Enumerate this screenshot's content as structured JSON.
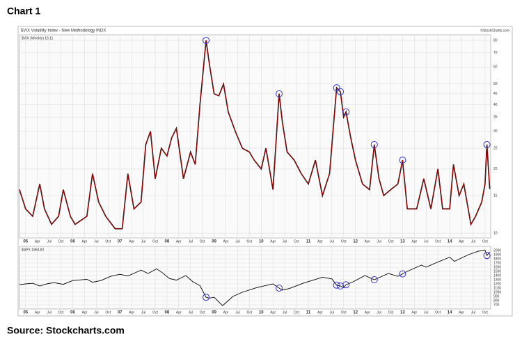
{
  "header": {
    "title": "Chart 1"
  },
  "footer": {
    "source": "Source: Stockcharts.com"
  },
  "chart_data": [
    {
      "type": "line",
      "title": "$VIX Volatility Index - New Methodology INDX",
      "credit": "©StockCharts.com",
      "legend_label": "$VIX (Weekly) 16.11",
      "color": "#cc0000",
      "highlight_color": "#3333cc",
      "log_scale": true,
      "grid": true,
      "xlim": [
        2004.87,
        2014.87
      ],
      "xticks": [
        {
          "value": 2005,
          "label": "05"
        },
        {
          "value": 2005.25,
          "label": "Apr"
        },
        {
          "value": 2005.5,
          "label": "Jul"
        },
        {
          "value": 2005.75,
          "label": "Oct"
        },
        {
          "value": 2006,
          "label": "06"
        },
        {
          "value": 2006.25,
          "label": "Apr"
        },
        {
          "value": 2006.5,
          "label": "Jul"
        },
        {
          "value": 2006.75,
          "label": "Oct"
        },
        {
          "value": 2007,
          "label": "07"
        },
        {
          "value": 2007.25,
          "label": "Apr"
        },
        {
          "value": 2007.5,
          "label": "Jul"
        },
        {
          "value": 2007.75,
          "label": "Oct"
        },
        {
          "value": 2008,
          "label": "08"
        },
        {
          "value": 2008.25,
          "label": "Apr"
        },
        {
          "value": 2008.5,
          "label": "Jul"
        },
        {
          "value": 2008.75,
          "label": "Oct"
        },
        {
          "value": 2009,
          "label": "09"
        },
        {
          "value": 2009.25,
          "label": "Apr"
        },
        {
          "value": 2009.5,
          "label": "Jul"
        },
        {
          "value": 2009.75,
          "label": "Oct"
        },
        {
          "value": 2010,
          "label": "10"
        },
        {
          "value": 2010.25,
          "label": "Apr"
        },
        {
          "value": 2010.5,
          "label": "Jul"
        },
        {
          "value": 2010.75,
          "label": "Oct"
        },
        {
          "value": 2011,
          "label": "11"
        },
        {
          "value": 2011.25,
          "label": "Apr"
        },
        {
          "value": 2011.5,
          "label": "Jul"
        },
        {
          "value": 2011.75,
          "label": "Oct"
        },
        {
          "value": 2012,
          "label": "12"
        },
        {
          "value": 2012.25,
          "label": "Apr"
        },
        {
          "value": 2012.5,
          "label": "Jul"
        },
        {
          "value": 2012.75,
          "label": "Oct"
        },
        {
          "value": 2013,
          "label": "13"
        },
        {
          "value": 2013.25,
          "label": "Apr"
        },
        {
          "value": 2013.5,
          "label": "Jul"
        },
        {
          "value": 2013.75,
          "label": "Oct"
        },
        {
          "value": 2014,
          "label": "14"
        },
        {
          "value": 2014.25,
          "label": "Apr"
        },
        {
          "value": 2014.5,
          "label": "Jul"
        },
        {
          "value": 2014.75,
          "label": "Oct"
        }
      ],
      "ylim": [
        9.5,
        85
      ],
      "yticks": [
        10,
        15,
        20,
        25,
        30,
        35,
        40,
        45,
        50,
        60,
        70,
        80
      ],
      "x": [
        2004.87,
        2005.0,
        2005.15,
        2005.3,
        2005.4,
        2005.55,
        2005.7,
        2005.8,
        2005.95,
        2006.05,
        2006.3,
        2006.42,
        2006.55,
        2006.7,
        2006.9,
        2007.05,
        2007.17,
        2007.3,
        2007.45,
        2007.55,
        2007.65,
        2007.75,
        2007.88,
        2008.0,
        2008.1,
        2008.2,
        2008.35,
        2008.5,
        2008.6,
        2008.7,
        2008.83,
        2008.9,
        2009.0,
        2009.1,
        2009.2,
        2009.3,
        2009.45,
        2009.6,
        2009.75,
        2009.85,
        2010.0,
        2010.1,
        2010.25,
        2010.38,
        2010.45,
        2010.55,
        2010.7,
        2010.85,
        2011.0,
        2011.15,
        2011.3,
        2011.45,
        2011.6,
        2011.68,
        2011.75,
        2011.8,
        2011.9,
        2012.0,
        2012.15,
        2012.3,
        2012.4,
        2012.5,
        2012.6,
        2012.75,
        2012.9,
        2013.0,
        2013.1,
        2013.3,
        2013.45,
        2013.6,
        2013.75,
        2013.85,
        2014.0,
        2014.08,
        2014.2,
        2014.3,
        2014.45,
        2014.55,
        2014.68,
        2014.75,
        2014.79,
        2014.85
      ],
      "values": [
        16,
        13,
        12,
        17,
        13,
        11,
        12,
        16,
        12,
        11,
        12,
        19,
        14,
        12,
        10.5,
        10.5,
        19,
        13,
        14,
        26,
        30,
        18,
        25,
        23,
        28,
        31,
        18,
        24,
        21,
        40,
        80,
        62,
        45,
        44,
        50,
        37,
        30,
        25,
        24,
        22,
        20,
        25,
        16,
        45,
        33,
        24,
        22,
        19,
        17,
        22,
        15,
        19,
        48,
        46,
        35,
        37,
        28,
        22,
        17,
        16,
        26,
        18,
        15,
        16,
        17,
        22,
        13,
        13,
        18,
        13,
        20,
        13,
        13,
        21,
        15,
        17,
        11,
        12,
        14,
        17,
        26,
        16.11
      ],
      "highlight_x": [
        2008.83,
        2010.38,
        2011.6,
        2011.68,
        2011.8,
        2012.4,
        2013.0,
        2014.79
      ],
      "highlight_values": [
        80,
        45,
        48,
        46,
        37,
        26,
        22,
        26
      ]
    },
    {
      "type": "line",
      "legend_label": "$SPX 1964.82",
      "color": "#000000",
      "highlight_color": "#3333cc",
      "log_scale": false,
      "grid": true,
      "ylim": [
        600,
        2100
      ],
      "yticks": [
        700,
        800,
        900,
        1000,
        1100,
        1200,
        1300,
        1400,
        1500,
        1600,
        1700,
        1800,
        1900,
        2000
      ],
      "x": [
        2004.87,
        2005.0,
        2005.15,
        2005.3,
        2005.45,
        2005.6,
        2005.8,
        2006.0,
        2006.3,
        2006.42,
        2006.6,
        2006.8,
        2007.0,
        2007.17,
        2007.45,
        2007.6,
        2007.78,
        2007.9,
        2008.05,
        2008.2,
        2008.4,
        2008.55,
        2008.7,
        2008.83,
        2008.9,
        2009.0,
        2009.18,
        2009.4,
        2009.6,
        2009.9,
        2010.25,
        2010.38,
        2010.45,
        2010.6,
        2010.9,
        2011.3,
        2011.5,
        2011.6,
        2011.68,
        2011.75,
        2011.8,
        2011.95,
        2012.2,
        2012.4,
        2012.7,
        2012.9,
        2013.0,
        2013.1,
        2013.4,
        2013.5,
        2013.7,
        2014.0,
        2014.1,
        2014.4,
        2014.6,
        2014.75,
        2014.79,
        2014.85
      ],
      "values": [
        1180,
        1200,
        1215,
        1150,
        1200,
        1230,
        1190,
        1280,
        1310,
        1240,
        1280,
        1380,
        1430,
        1390,
        1530,
        1450,
        1560,
        1470,
        1330,
        1290,
        1400,
        1250,
        1160,
        880,
        860,
        880,
        680,
        900,
        1000,
        1110,
        1200,
        1100,
        1050,
        1090,
        1220,
        1360,
        1320,
        1170,
        1150,
        1110,
        1180,
        1250,
        1400,
        1300,
        1450,
        1380,
        1440,
        1500,
        1650,
        1600,
        1700,
        1840,
        1740,
        1900,
        1980,
        2010,
        1880,
        1964.82
      ],
      "highlight_x": [
        2008.83,
        2010.38,
        2011.6,
        2011.68,
        2011.8,
        2012.4,
        2013.0,
        2014.79
      ],
      "highlight_values": [
        880,
        1100,
        1170,
        1150,
        1180,
        1300,
        1440,
        1880
      ]
    }
  ]
}
